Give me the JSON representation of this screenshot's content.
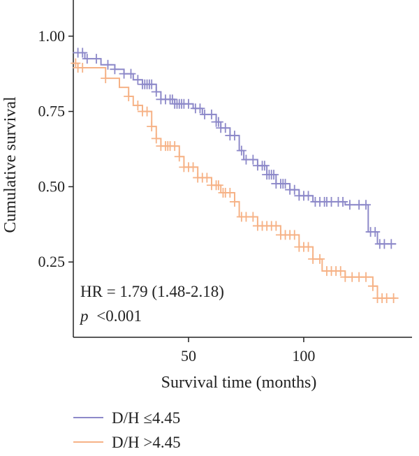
{
  "chart_data": {
    "type": "line",
    "title": "",
    "xlabel": "Survival time (months)",
    "ylabel": "Cumulative survival",
    "xlim": [
      0,
      147
    ],
    "ylim": [
      0,
      1.12
    ],
    "xticks": [
      50,
      100
    ],
    "xtick_labels": [
      "50",
      "100"
    ],
    "yticks": [
      0.25,
      0.5,
      0.75,
      1.0
    ],
    "ytick_labels": [
      "0.25",
      "0.50",
      "0.75",
      "1.00"
    ],
    "grid": false,
    "legend_position": "bottom",
    "annotations": {
      "hr": "HR = 1.79 (1.48-2.18)",
      "p_label": "p",
      "p_value": "<0.001"
    },
    "series": [
      {
        "name": "D/H ≤4.45",
        "color": "#8d89c9",
        "points": [
          [
            0,
            0.945
          ],
          [
            5,
            0.945
          ],
          [
            5,
            0.925
          ],
          [
            12,
            0.925
          ],
          [
            12,
            0.905
          ],
          [
            18,
            0.905
          ],
          [
            18,
            0.89
          ],
          [
            22,
            0.89
          ],
          [
            22,
            0.875
          ],
          [
            26,
            0.875
          ],
          [
            26,
            0.855
          ],
          [
            30,
            0.855
          ],
          [
            30,
            0.84
          ],
          [
            36,
            0.84
          ],
          [
            36,
            0.815
          ],
          [
            38,
            0.815
          ],
          [
            38,
            0.79
          ],
          [
            44,
            0.79
          ],
          [
            44,
            0.775
          ],
          [
            52,
            0.775
          ],
          [
            52,
            0.76
          ],
          [
            56,
            0.76
          ],
          [
            56,
            0.74
          ],
          [
            62,
            0.74
          ],
          [
            62,
            0.715
          ],
          [
            64,
            0.715
          ],
          [
            64,
            0.695
          ],
          [
            68,
            0.695
          ],
          [
            68,
            0.67
          ],
          [
            72,
            0.67
          ],
          [
            72,
            0.62
          ],
          [
            74,
            0.62
          ],
          [
            74,
            0.59
          ],
          [
            80,
            0.59
          ],
          [
            80,
            0.57
          ],
          [
            84,
            0.57
          ],
          [
            84,
            0.54
          ],
          [
            88,
            0.54
          ],
          [
            88,
            0.51
          ],
          [
            94,
            0.51
          ],
          [
            94,
            0.49
          ],
          [
            98,
            0.49
          ],
          [
            98,
            0.47
          ],
          [
            104,
            0.47
          ],
          [
            104,
            0.45
          ],
          [
            118,
            0.45
          ],
          [
            118,
            0.44
          ],
          [
            128,
            0.44
          ],
          [
            128,
            0.35
          ],
          [
            132,
            0.35
          ],
          [
            132,
            0.31
          ],
          [
            140,
            0.31
          ]
        ],
        "censor_x": [
          2,
          4,
          6,
          10,
          15,
          18,
          22,
          25,
          28,
          30,
          31,
          32,
          33,
          34,
          36,
          38,
          40,
          42,
          43,
          44,
          45,
          46,
          47,
          48,
          50,
          53,
          55,
          57,
          60,
          62,
          63,
          64,
          66,
          68,
          70,
          73,
          75,
          78,
          80,
          82,
          83,
          84,
          85,
          86,
          87,
          88,
          90,
          91,
          92,
          94,
          96,
          98,
          100,
          102,
          105,
          107,
          109,
          110,
          112,
          115,
          117,
          120,
          124,
          127,
          129,
          131,
          133,
          135,
          138
        ]
      },
      {
        "name": "D/H >4.45",
        "color": "#f6b286",
        "points": [
          [
            0,
            0.91
          ],
          [
            2,
            0.91
          ],
          [
            2,
            0.895
          ],
          [
            14,
            0.895
          ],
          [
            14,
            0.86
          ],
          [
            20,
            0.86
          ],
          [
            20,
            0.83
          ],
          [
            24,
            0.83
          ],
          [
            24,
            0.8
          ],
          [
            26,
            0.8
          ],
          [
            26,
            0.77
          ],
          [
            30,
            0.77
          ],
          [
            30,
            0.75
          ],
          [
            34,
            0.75
          ],
          [
            34,
            0.7
          ],
          [
            36,
            0.7
          ],
          [
            36,
            0.66
          ],
          [
            38,
            0.66
          ],
          [
            38,
            0.635
          ],
          [
            46,
            0.635
          ],
          [
            46,
            0.6
          ],
          [
            48,
            0.6
          ],
          [
            48,
            0.565
          ],
          [
            54,
            0.565
          ],
          [
            54,
            0.53
          ],
          [
            60,
            0.53
          ],
          [
            60,
            0.505
          ],
          [
            64,
            0.505
          ],
          [
            64,
            0.48
          ],
          [
            70,
            0.48
          ],
          [
            70,
            0.45
          ],
          [
            72,
            0.45
          ],
          [
            72,
            0.4
          ],
          [
            80,
            0.4
          ],
          [
            80,
            0.37
          ],
          [
            90,
            0.37
          ],
          [
            90,
            0.34
          ],
          [
            98,
            0.34
          ],
          [
            98,
            0.3
          ],
          [
            104,
            0.3
          ],
          [
            104,
            0.26
          ],
          [
            108,
            0.26
          ],
          [
            108,
            0.22
          ],
          [
            118,
            0.22
          ],
          [
            118,
            0.2
          ],
          [
            130,
            0.2
          ],
          [
            130,
            0.17
          ],
          [
            132,
            0.17
          ],
          [
            132,
            0.13
          ],
          [
            140,
            0.13
          ]
        ],
        "censor_x": [
          1,
          2,
          4,
          14,
          24,
          28,
          30,
          32,
          34,
          36,
          38,
          40,
          41,
          42,
          44,
          46,
          48,
          50,
          52,
          54,
          56,
          58,
          60,
          62,
          63,
          65,
          66,
          68,
          70,
          73,
          75,
          78,
          80,
          82,
          84,
          86,
          88,
          90,
          92,
          94,
          96,
          98,
          100,
          102,
          104,
          107,
          110,
          112,
          114,
          116,
          118,
          121,
          124,
          127,
          130,
          132,
          134,
          136,
          139
        ]
      }
    ]
  }
}
